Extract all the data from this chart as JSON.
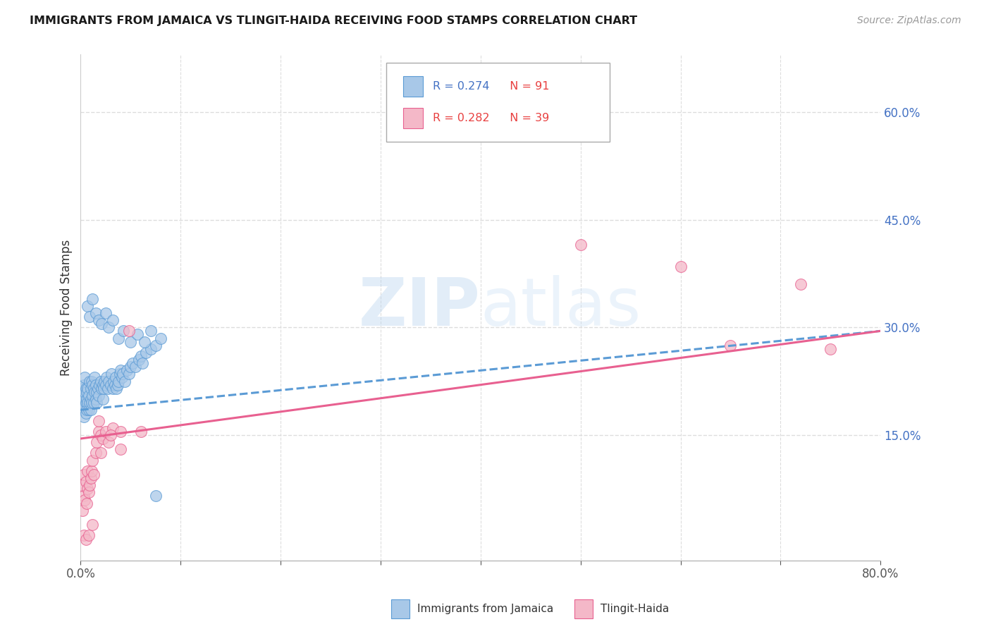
{
  "title": "IMMIGRANTS FROM JAMAICA VS TLINGIT-HAIDA RECEIVING FOOD STAMPS CORRELATION CHART",
  "source": "Source: ZipAtlas.com",
  "ylabel": "Receiving Food Stamps",
  "xlim": [
    0.0,
    0.8
  ],
  "ylim": [
    -0.025,
    0.68
  ],
  "yticks_right": [
    0.15,
    0.3,
    0.45,
    0.6
  ],
  "ytick_labels_right": [
    "15.0%",
    "30.0%",
    "45.0%",
    "60.0%"
  ],
  "blue_fill": "#a8c8e8",
  "blue_edge": "#5b9bd5",
  "pink_fill": "#f4b8c8",
  "pink_edge": "#e86090",
  "blue_line": "#5b9bd5",
  "pink_line": "#e86090",
  "watermark_color": "#c8dff0",
  "background_color": "#ffffff",
  "grid_color": "#dddddd",
  "title_color": "#1a1a1a",
  "r_blue_color": "#4472c4",
  "n_red_color": "#e84040",
  "jamaica_scatter_x": [
    0.001,
    0.002,
    0.002,
    0.003,
    0.003,
    0.003,
    0.004,
    0.004,
    0.004,
    0.005,
    0.005,
    0.005,
    0.006,
    0.006,
    0.006,
    0.007,
    0.007,
    0.008,
    0.008,
    0.009,
    0.009,
    0.01,
    0.01,
    0.01,
    0.011,
    0.011,
    0.012,
    0.012,
    0.013,
    0.013,
    0.014,
    0.014,
    0.015,
    0.015,
    0.016,
    0.016,
    0.017,
    0.018,
    0.019,
    0.02,
    0.021,
    0.022,
    0.022,
    0.023,
    0.024,
    0.025,
    0.026,
    0.027,
    0.028,
    0.03,
    0.031,
    0.032,
    0.033,
    0.034,
    0.035,
    0.036,
    0.037,
    0.038,
    0.039,
    0.04,
    0.041,
    0.042,
    0.044,
    0.046,
    0.048,
    0.05,
    0.052,
    0.055,
    0.058,
    0.06,
    0.062,
    0.065,
    0.07,
    0.075,
    0.08,
    0.007,
    0.009,
    0.012,
    0.015,
    0.018,
    0.021,
    0.025,
    0.028,
    0.032,
    0.038,
    0.043,
    0.05,
    0.057,
    0.064,
    0.07,
    0.075
  ],
  "jamaica_scatter_y": [
    0.195,
    0.185,
    0.215,
    0.175,
    0.2,
    0.22,
    0.19,
    0.21,
    0.23,
    0.18,
    0.195,
    0.215,
    0.2,
    0.185,
    0.21,
    0.195,
    0.215,
    0.185,
    0.205,
    0.195,
    0.225,
    0.2,
    0.185,
    0.215,
    0.195,
    0.225,
    0.205,
    0.22,
    0.195,
    0.215,
    0.21,
    0.23,
    0.2,
    0.22,
    0.21,
    0.195,
    0.215,
    0.205,
    0.22,
    0.225,
    0.215,
    0.2,
    0.22,
    0.215,
    0.225,
    0.22,
    0.23,
    0.215,
    0.225,
    0.22,
    0.235,
    0.215,
    0.225,
    0.22,
    0.23,
    0.215,
    0.22,
    0.225,
    0.235,
    0.24,
    0.23,
    0.235,
    0.225,
    0.24,
    0.235,
    0.245,
    0.25,
    0.245,
    0.255,
    0.26,
    0.25,
    0.265,
    0.27,
    0.275,
    0.285,
    0.33,
    0.315,
    0.34,
    0.32,
    0.31,
    0.305,
    0.32,
    0.3,
    0.31,
    0.285,
    0.295,
    0.28,
    0.29,
    0.28,
    0.295,
    0.065
  ],
  "tlingit_scatter_x": [
    0.001,
    0.002,
    0.003,
    0.003,
    0.004,
    0.005,
    0.006,
    0.007,
    0.007,
    0.008,
    0.009,
    0.01,
    0.011,
    0.012,
    0.013,
    0.015,
    0.016,
    0.018,
    0.02,
    0.022,
    0.025,
    0.028,
    0.032,
    0.04,
    0.048,
    0.003,
    0.005,
    0.008,
    0.012,
    0.018,
    0.06,
    0.5,
    0.6,
    0.65,
    0.72,
    0.75,
    0.03,
    0.02,
    0.04
  ],
  "tlingit_scatter_y": [
    0.08,
    0.045,
    0.065,
    0.095,
    0.06,
    0.085,
    0.055,
    0.075,
    0.1,
    0.07,
    0.08,
    0.09,
    0.1,
    0.115,
    0.095,
    0.125,
    0.14,
    0.155,
    0.15,
    0.145,
    0.155,
    0.14,
    0.16,
    0.155,
    0.295,
    0.01,
    0.005,
    0.01,
    0.025,
    0.17,
    0.155,
    0.415,
    0.385,
    0.275,
    0.36,
    0.27,
    0.15,
    0.125,
    0.13
  ],
  "blue_trend_x": [
    0.0,
    0.8
  ],
  "blue_trend_y": [
    0.185,
    0.295
  ],
  "pink_trend_x": [
    0.0,
    0.8
  ],
  "pink_trend_y": [
    0.145,
    0.295
  ]
}
